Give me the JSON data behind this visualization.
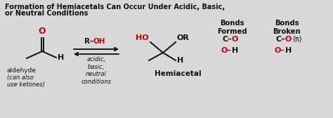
{
  "title_line1": "Formation of Hemiacetals Can Occur Under Acidic, Basic,",
  "title_line2": "or Neutral Conditions",
  "bg_color": "#d8d8d8",
  "black": "#111111",
  "red": "#cc0000",
  "bonds_formed_header": "Bonds\nFormed",
  "bonds_broken_header": "Bonds\nBroken",
  "conditions": "acidic,\nbasic,\nneutral\nconditions",
  "label_aldehyde": "aldehyde",
  "label_ketones": "(can also\nuse ketones)",
  "label_hemiacetal": "Hemiacetal",
  "figsize": [
    4.74,
    1.68
  ],
  "dpi": 100
}
